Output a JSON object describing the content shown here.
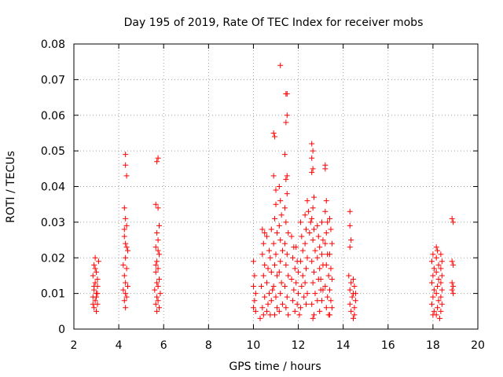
{
  "chart_data": {
    "type": "scatter",
    "title": "Day 195 of 2019, Rate Of TEC Index for receiver mobs",
    "xlabel": "GPS time / hours",
    "ylabel": "ROTI / TECUs",
    "xlim": [
      2,
      20
    ],
    "ylim": [
      0,
      0.08
    ],
    "x_ticks": [
      "2",
      "4",
      "6",
      "8",
      "10",
      "12",
      "14",
      "16",
      "18",
      "20"
    ],
    "y_ticks": [
      "0",
      "0.01",
      "0.02",
      "0.03",
      "0.04",
      "0.05",
      "0.06",
      "0.07",
      "0.08"
    ],
    "grid": true,
    "marker": "+",
    "color": "#ff0000",
    "series": [
      {
        "name": "ROTI",
        "points": [
          [
            2.95,
            0.02
          ],
          [
            2.9,
            0.018
          ],
          [
            2.85,
            0.015
          ],
          [
            3.0,
            0.016
          ],
          [
            2.95,
            0.013
          ],
          [
            3.05,
            0.012
          ],
          [
            2.9,
            0.011
          ],
          [
            3.0,
            0.01
          ],
          [
            2.85,
            0.009
          ],
          [
            2.95,
            0.008
          ],
          [
            3.05,
            0.007
          ],
          [
            2.9,
            0.006
          ],
          [
            3.0,
            0.005
          ],
          [
            3.05,
            0.014
          ],
          [
            2.95,
            0.017
          ],
          [
            3.1,
            0.019
          ],
          [
            2.9,
            0.012
          ],
          [
            3.0,
            0.009
          ],
          [
            2.85,
            0.007
          ],
          [
            3.05,
            0.01
          ],
          [
            4.3,
            0.049
          ],
          [
            4.3,
            0.046
          ],
          [
            4.35,
            0.043
          ],
          [
            4.25,
            0.034
          ],
          [
            4.3,
            0.031
          ],
          [
            4.35,
            0.029
          ],
          [
            4.25,
            0.026
          ],
          [
            4.3,
            0.024
          ],
          [
            4.4,
            0.022
          ],
          [
            4.3,
            0.02
          ],
          [
            4.2,
            0.018
          ],
          [
            4.35,
            0.017
          ],
          [
            4.25,
            0.015
          ],
          [
            4.3,
            0.013
          ],
          [
            4.4,
            0.012
          ],
          [
            4.2,
            0.011
          ],
          [
            4.3,
            0.01
          ],
          [
            4.35,
            0.009
          ],
          [
            4.25,
            0.008
          ],
          [
            4.3,
            0.006
          ],
          [
            4.35,
            0.023
          ],
          [
            4.25,
            0.028
          ],
          [
            5.75,
            0.048
          ],
          [
            5.7,
            0.047
          ],
          [
            5.65,
            0.035
          ],
          [
            5.75,
            0.034
          ],
          [
            5.8,
            0.029
          ],
          [
            5.7,
            0.027
          ],
          [
            5.75,
            0.025
          ],
          [
            5.65,
            0.023
          ],
          [
            5.8,
            0.021
          ],
          [
            5.7,
            0.019
          ],
          [
            5.75,
            0.017
          ],
          [
            5.65,
            0.016
          ],
          [
            5.8,
            0.014
          ],
          [
            5.7,
            0.013
          ],
          [
            5.75,
            0.012
          ],
          [
            5.6,
            0.011
          ],
          [
            5.85,
            0.01
          ],
          [
            5.7,
            0.009
          ],
          [
            5.75,
            0.008
          ],
          [
            5.65,
            0.007
          ],
          [
            5.8,
            0.006
          ],
          [
            5.7,
            0.005
          ],
          [
            5.75,
            0.022
          ],
          [
            5.65,
            0.018
          ],
          [
            10.0,
            0.019
          ],
          [
            10.05,
            0.015
          ],
          [
            10.0,
            0.012
          ],
          [
            10.1,
            0.01
          ],
          [
            10.05,
            0.008
          ],
          [
            10.0,
            0.006
          ],
          [
            10.1,
            0.005
          ],
          [
            10.4,
            0.028
          ],
          [
            10.5,
            0.027
          ],
          [
            10.45,
            0.024
          ],
          [
            10.4,
            0.021
          ],
          [
            10.5,
            0.018
          ],
          [
            10.45,
            0.015
          ],
          [
            10.35,
            0.012
          ],
          [
            10.5,
            0.009
          ],
          [
            10.4,
            0.006
          ],
          [
            10.45,
            0.004
          ],
          [
            10.3,
            0.003
          ],
          [
            10.6,
            0.026
          ],
          [
            10.7,
            0.022
          ],
          [
            10.65,
            0.017
          ],
          [
            10.6,
            0.013
          ],
          [
            10.7,
            0.01
          ],
          [
            10.65,
            0.007
          ],
          [
            10.6,
            0.005
          ],
          [
            10.8,
            0.028
          ],
          [
            10.75,
            0.02
          ],
          [
            10.8,
            0.016
          ],
          [
            10.85,
            0.011
          ],
          [
            10.8,
            0.008
          ],
          [
            10.75,
            0.004
          ],
          [
            10.9,
            0.055
          ],
          [
            10.95,
            0.054
          ],
          [
            10.9,
            0.043
          ],
          [
            11.0,
            0.039
          ],
          [
            11.0,
            0.035
          ],
          [
            10.95,
            0.031
          ],
          [
            11.05,
            0.027
          ],
          [
            10.9,
            0.024
          ],
          [
            11.0,
            0.021
          ],
          [
            10.95,
            0.018
          ],
          [
            11.05,
            0.015
          ],
          [
            10.9,
            0.012
          ],
          [
            11.0,
            0.009
          ],
          [
            11.05,
            0.006
          ],
          [
            10.95,
            0.004
          ],
          [
            11.2,
            0.074
          ],
          [
            11.15,
            0.04
          ],
          [
            11.2,
            0.036
          ],
          [
            11.25,
            0.032
          ],
          [
            11.15,
            0.029
          ],
          [
            11.2,
            0.025
          ],
          [
            11.3,
            0.022
          ],
          [
            11.2,
            0.019
          ],
          [
            11.15,
            0.016
          ],
          [
            11.25,
            0.013
          ],
          [
            11.2,
            0.01
          ],
          [
            11.3,
            0.007
          ],
          [
            11.15,
            0.005
          ],
          [
            11.45,
            0.066
          ],
          [
            11.5,
            0.066
          ],
          [
            11.5,
            0.06
          ],
          [
            11.45,
            0.058
          ],
          [
            11.4,
            0.049
          ],
          [
            11.5,
            0.043
          ],
          [
            11.45,
            0.042
          ],
          [
            11.5,
            0.038
          ],
          [
            11.4,
            0.034
          ],
          [
            11.45,
            0.03
          ],
          [
            11.55,
            0.027
          ],
          [
            11.4,
            0.024
          ],
          [
            11.5,
            0.021
          ],
          [
            11.45,
            0.018
          ],
          [
            11.55,
            0.015
          ],
          [
            11.4,
            0.012
          ],
          [
            11.5,
            0.009
          ],
          [
            11.45,
            0.006
          ],
          [
            11.55,
            0.004
          ],
          [
            11.7,
            0.026
          ],
          [
            11.8,
            0.023
          ],
          [
            11.75,
            0.02
          ],
          [
            11.85,
            0.017
          ],
          [
            11.7,
            0.014
          ],
          [
            11.8,
            0.011
          ],
          [
            11.75,
            0.008
          ],
          [
            11.85,
            0.005
          ],
          [
            11.9,
            0.023
          ],
          [
            11.95,
            0.019
          ],
          [
            12.0,
            0.016
          ],
          [
            11.9,
            0.013
          ],
          [
            12.0,
            0.01
          ],
          [
            11.95,
            0.007
          ],
          [
            12.05,
            0.004
          ],
          [
            12.1,
            0.03
          ],
          [
            12.15,
            0.026
          ],
          [
            12.2,
            0.022
          ],
          [
            12.1,
            0.019
          ],
          [
            12.2,
            0.015
          ],
          [
            12.15,
            0.012
          ],
          [
            12.25,
            0.009
          ],
          [
            12.1,
            0.006
          ],
          [
            12.3,
            0.032
          ],
          [
            12.35,
            0.028
          ],
          [
            12.3,
            0.024
          ],
          [
            12.4,
            0.02
          ],
          [
            12.35,
            0.017
          ],
          [
            12.3,
            0.013
          ],
          [
            12.4,
            0.01
          ],
          [
            12.35,
            0.007
          ],
          [
            12.4,
            0.036
          ],
          [
            12.45,
            0.033
          ],
          [
            12.55,
            0.03
          ],
          [
            12.5,
            0.027
          ],
          [
            12.6,
            0.052
          ],
          [
            12.65,
            0.05
          ],
          [
            12.6,
            0.048
          ],
          [
            12.65,
            0.045
          ],
          [
            12.6,
            0.044
          ],
          [
            12.7,
            0.037
          ],
          [
            12.65,
            0.034
          ],
          [
            12.6,
            0.031
          ],
          [
            12.7,
            0.028
          ],
          [
            12.65,
            0.025
          ],
          [
            12.75,
            0.022
          ],
          [
            12.6,
            0.019
          ],
          [
            12.7,
            0.016
          ],
          [
            12.65,
            0.013
          ],
          [
            12.75,
            0.01
          ],
          [
            12.6,
            0.007
          ],
          [
            12.7,
            0.004
          ],
          [
            12.65,
            0.003
          ],
          [
            12.85,
            0.029
          ],
          [
            12.9,
            0.026
          ],
          [
            12.95,
            0.023
          ],
          [
            12.85,
            0.02
          ],
          [
            12.95,
            0.017
          ],
          [
            12.9,
            0.014
          ],
          [
            13.0,
            0.011
          ],
          [
            12.85,
            0.008
          ],
          [
            12.95,
            0.005
          ],
          [
            13.05,
            0.03
          ],
          [
            13.1,
            0.025
          ],
          [
            13.05,
            0.021
          ],
          [
            13.1,
            0.018
          ],
          [
            13.0,
            0.014
          ],
          [
            13.1,
            0.011
          ],
          [
            13.05,
            0.008
          ],
          [
            13.2,
            0.046
          ],
          [
            13.2,
            0.045
          ],
          [
            13.25,
            0.036
          ],
          [
            13.2,
            0.033
          ],
          [
            13.3,
            0.03
          ],
          [
            13.25,
            0.027
          ],
          [
            13.2,
            0.024
          ],
          [
            13.3,
            0.021
          ],
          [
            13.25,
            0.018
          ],
          [
            13.35,
            0.015
          ],
          [
            13.2,
            0.012
          ],
          [
            13.3,
            0.009
          ],
          [
            13.25,
            0.006
          ],
          [
            13.35,
            0.004
          ],
          [
            13.4,
            0.031
          ],
          [
            13.45,
            0.028
          ],
          [
            13.5,
            0.024
          ],
          [
            13.4,
            0.021
          ],
          [
            13.45,
            0.017
          ],
          [
            13.5,
            0.014
          ],
          [
            13.4,
            0.011
          ],
          [
            13.45,
            0.008
          ],
          [
            13.5,
            0.006
          ],
          [
            13.4,
            0.004
          ],
          [
            14.3,
            0.033
          ],
          [
            14.3,
            0.029
          ],
          [
            14.35,
            0.025
          ],
          [
            14.3,
            0.023
          ],
          [
            14.25,
            0.015
          ],
          [
            14.35,
            0.013
          ],
          [
            14.3,
            0.011
          ],
          [
            14.4,
            0.009
          ],
          [
            14.3,
            0.007
          ],
          [
            14.35,
            0.005
          ],
          [
            14.45,
            0.014
          ],
          [
            14.5,
            0.012
          ],
          [
            14.45,
            0.01
          ],
          [
            14.55,
            0.008
          ],
          [
            14.5,
            0.006
          ],
          [
            14.45,
            0.003
          ],
          [
            14.5,
            0.004
          ],
          [
            14.55,
            0.01
          ],
          [
            18.0,
            0.021
          ],
          [
            17.95,
            0.019
          ],
          [
            18.05,
            0.017
          ],
          [
            18.0,
            0.015
          ],
          [
            17.95,
            0.013
          ],
          [
            18.05,
            0.011
          ],
          [
            18.0,
            0.009
          ],
          [
            17.95,
            0.007
          ],
          [
            18.05,
            0.005
          ],
          [
            18.0,
            0.004
          ],
          [
            18.15,
            0.023
          ],
          [
            18.2,
            0.022
          ],
          [
            18.15,
            0.02
          ],
          [
            18.25,
            0.018
          ],
          [
            18.15,
            0.016
          ],
          [
            18.25,
            0.014
          ],
          [
            18.2,
            0.012
          ],
          [
            18.15,
            0.01
          ],
          [
            18.25,
            0.008
          ],
          [
            18.2,
            0.006
          ],
          [
            18.15,
            0.004
          ],
          [
            18.35,
            0.021
          ],
          [
            18.4,
            0.019
          ],
          [
            18.35,
            0.017
          ],
          [
            18.4,
            0.015
          ],
          [
            18.35,
            0.013
          ],
          [
            18.4,
            0.011
          ],
          [
            18.35,
            0.009
          ],
          [
            18.4,
            0.007
          ],
          [
            18.35,
            0.005
          ],
          [
            18.3,
            0.003
          ],
          [
            18.85,
            0.031
          ],
          [
            18.9,
            0.03
          ],
          [
            18.85,
            0.019
          ],
          [
            18.9,
            0.018
          ],
          [
            18.85,
            0.013
          ],
          [
            18.9,
            0.012
          ],
          [
            18.85,
            0.011
          ],
          [
            18.9,
            0.01
          ]
        ]
      }
    ]
  }
}
